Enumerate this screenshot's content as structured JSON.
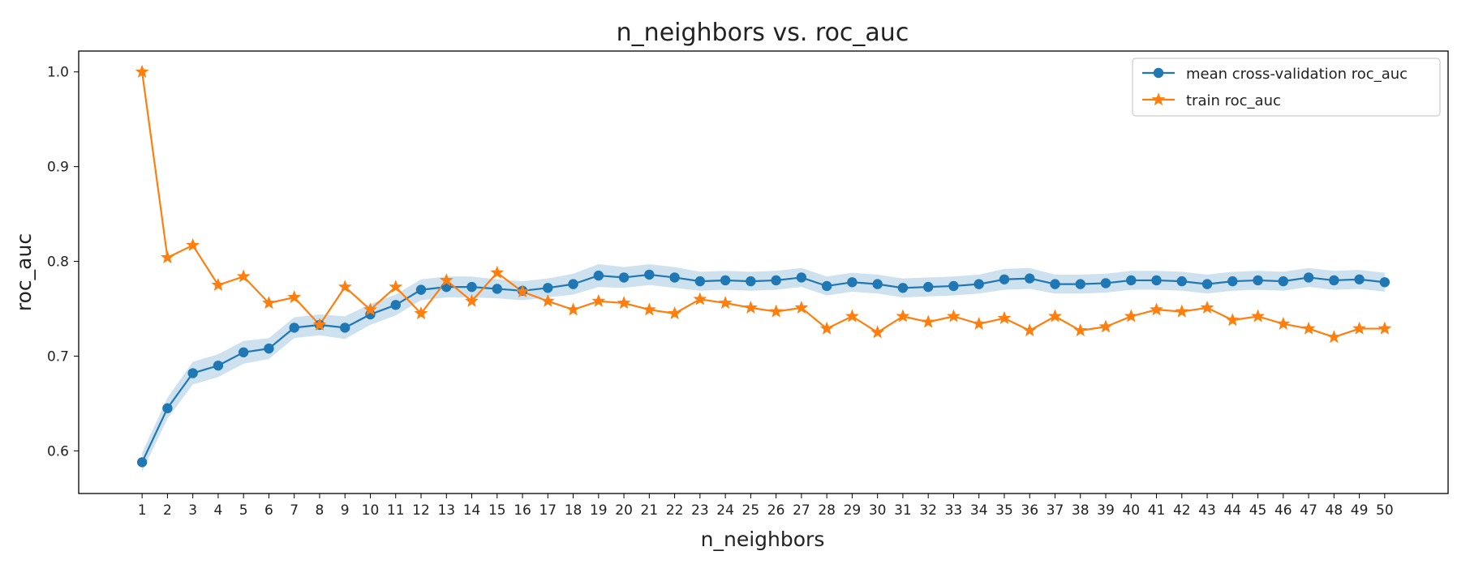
{
  "chart_data": {
    "type": "line",
    "title": "n_neighbors vs. roc_auc",
    "xlabel": "n_neighbors",
    "ylabel": "roc_auc",
    "x": [
      1,
      2,
      3,
      4,
      5,
      6,
      7,
      8,
      9,
      10,
      11,
      12,
      13,
      14,
      15,
      16,
      17,
      18,
      19,
      20,
      21,
      22,
      23,
      24,
      25,
      26,
      27,
      28,
      29,
      30,
      31,
      32,
      33,
      34,
      35,
      36,
      37,
      38,
      39,
      40,
      41,
      42,
      43,
      44,
      45,
      46,
      47,
      48,
      49,
      50
    ],
    "xlim": [
      -1.5,
      52.5
    ],
    "ylim": [
      0.555,
      1.022
    ],
    "yticks": [
      0.6,
      0.7,
      0.8,
      0.9,
      1.0
    ],
    "ytick_labels": [
      "0.6",
      "0.7",
      "0.8",
      "0.9",
      "1.0"
    ],
    "legend_position": "upper right",
    "grid": false,
    "series": [
      {
        "name": "mean cross-validation roc_auc",
        "color": "#1f77b4",
        "marker": "circle",
        "values": [
          0.588,
          0.645,
          0.682,
          0.69,
          0.704,
          0.708,
          0.73,
          0.733,
          0.73,
          0.744,
          0.754,
          0.77,
          0.773,
          0.773,
          0.771,
          0.769,
          0.772,
          0.776,
          0.785,
          0.783,
          0.786,
          0.783,
          0.779,
          0.78,
          0.779,
          0.78,
          0.783,
          0.774,
          0.778,
          0.776,
          0.772,
          0.773,
          0.774,
          0.776,
          0.781,
          0.782,
          0.776,
          0.776,
          0.777,
          0.78,
          0.78,
          0.779,
          0.776,
          0.779,
          0.78,
          0.779,
          0.783,
          0.78,
          0.781,
          0.778
        ],
        "band": [
          0.01,
          0.011,
          0.012,
          0.012,
          0.012,
          0.011,
          0.011,
          0.011,
          0.012,
          0.011,
          0.011,
          0.011,
          0.011,
          0.011,
          0.01,
          0.01,
          0.01,
          0.011,
          0.012,
          0.011,
          0.011,
          0.011,
          0.01,
          0.01,
          0.01,
          0.01,
          0.01,
          0.01,
          0.01,
          0.01,
          0.01,
          0.01,
          0.01,
          0.01,
          0.011,
          0.011,
          0.01,
          0.01,
          0.01,
          0.01,
          0.01,
          0.01,
          0.01,
          0.01,
          0.01,
          0.01,
          0.01,
          0.01,
          0.01,
          0.01
        ]
      },
      {
        "name": "train roc_auc",
        "color": "#ff7f0e",
        "marker": "star",
        "values": [
          1.0,
          0.804,
          0.817,
          0.775,
          0.784,
          0.756,
          0.762,
          0.733,
          0.773,
          0.749,
          0.773,
          0.745,
          0.78,
          0.758,
          0.788,
          0.768,
          0.758,
          0.749,
          0.758,
          0.756,
          0.749,
          0.745,
          0.76,
          0.756,
          0.751,
          0.747,
          0.751,
          0.729,
          0.742,
          0.725,
          0.742,
          0.736,
          0.742,
          0.734,
          0.74,
          0.727,
          0.742,
          0.727,
          0.731,
          0.742,
          0.749,
          0.747,
          0.751,
          0.738,
          0.742,
          0.734,
          0.729,
          0.72,
          0.729,
          0.729
        ]
      }
    ]
  }
}
